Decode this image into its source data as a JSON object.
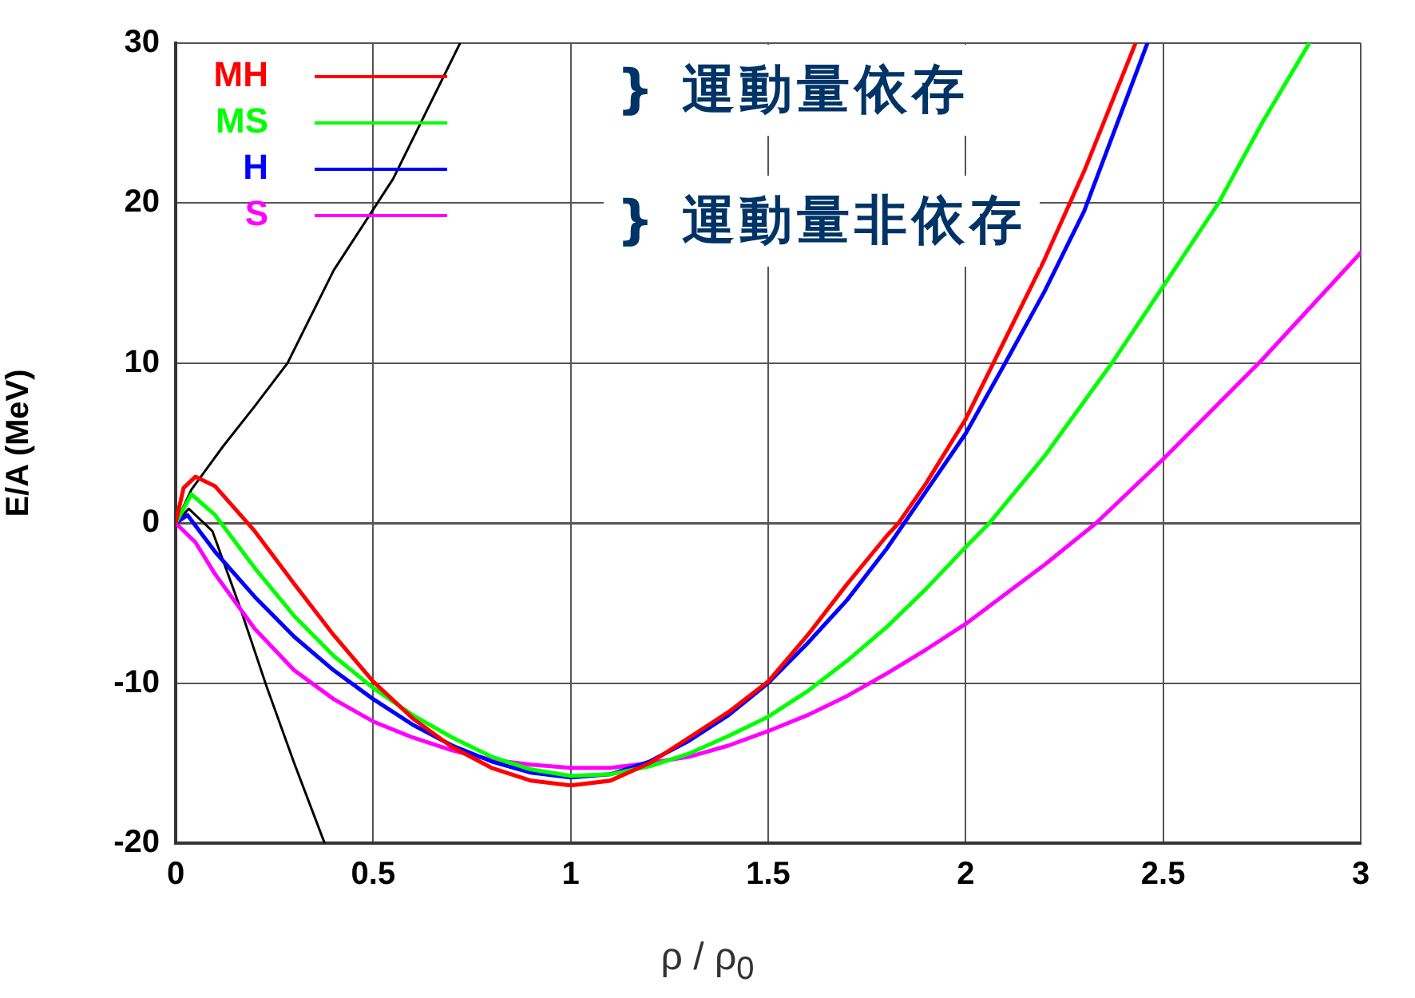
{
  "chart_data": {
    "type": "line",
    "xlabel": "ρ / ρ$_{0}$",
    "ylabel": "E/A (MeV)",
    "xlim": [
      0,
      3
    ],
    "xticks": [
      0,
      0.5,
      1,
      1.5,
      2,
      2.5,
      3
    ],
    "ylim": [
      -20,
      30
    ],
    "yticks": [
      -20,
      -10,
      0,
      10,
      20,
      30
    ],
    "grid": true,
    "legend": "top left",
    "marker": "none",
    "line_style": "solid",
    "annotations": [
      "} 運動量依存",
      "} 運動量非依存"
    ],
    "series": [
      {
        "name": "MH",
        "color": "#ff0000",
        "x": [
          0,
          0.02,
          0.05,
          0.1,
          0.2,
          0.3,
          0.4,
          0.5,
          0.6,
          0.7,
          0.8,
          0.9,
          1.0,
          1.1,
          1.2,
          1.3,
          1.4,
          1.5,
          1.6,
          1.7,
          1.8,
          1.83,
          1.9,
          2.0,
          2.07,
          2.2,
          2.3,
          2.43
        ],
        "values": [
          0,
          2.2,
          2.9,
          2.3,
          -0.5,
          -3.8,
          -7,
          -9.9,
          -12.2,
          -14,
          -15.3,
          -16.1,
          -16.4,
          -16.1,
          -15,
          -13.4,
          -11.8,
          -9.9,
          -7,
          -3.8,
          -0.8,
          0,
          2.5,
          6.5,
          10,
          16.5,
          22,
          30
        ]
      },
      {
        "name": "MS",
        "color": "#00ff00",
        "x": [
          0,
          0.04,
          0.1,
          0.2,
          0.3,
          0.4,
          0.5,
          0.6,
          0.7,
          0.8,
          0.9,
          1.0,
          1.1,
          1.2,
          1.3,
          1.4,
          1.5,
          1.6,
          1.7,
          1.8,
          1.9,
          2.0,
          2.06,
          2.2,
          2.37,
          2.5,
          2.64,
          2.75,
          2.87
        ],
        "values": [
          0,
          1.8,
          0.5,
          -2.8,
          -5.8,
          -8.3,
          -10.3,
          -12,
          -13.4,
          -14.6,
          -15.4,
          -15.8,
          -15.7,
          -15.2,
          -14.4,
          -13.3,
          -12.1,
          -10.5,
          -8.6,
          -6.5,
          -4.1,
          -1.5,
          0,
          4.2,
          10,
          14.8,
          20,
          25,
          30
        ]
      },
      {
        "name": "H",
        "color": "#0000ff",
        "x": [
          0,
          0.03,
          0.1,
          0.2,
          0.3,
          0.4,
          0.5,
          0.6,
          0.7,
          0.8,
          0.9,
          1.0,
          1.1,
          1.2,
          1.3,
          1.4,
          1.5,
          1.6,
          1.7,
          1.8,
          1.9,
          2.0,
          2.1,
          2.2,
          2.3,
          2.46
        ],
        "values": [
          0,
          0.5,
          -1.8,
          -4.6,
          -7.1,
          -9.2,
          -11,
          -12.6,
          -13.9,
          -14.9,
          -15.6,
          -15.9,
          -15.7,
          -14.9,
          -13.6,
          -12,
          -10,
          -7.5,
          -4.8,
          -1.6,
          2,
          5.6,
          10,
          14.5,
          19.5,
          30
        ]
      },
      {
        "name": "S",
        "color": "#ff00ff",
        "x": [
          0,
          0.05,
          0.1,
          0.2,
          0.3,
          0.4,
          0.5,
          0.6,
          0.7,
          0.8,
          0.9,
          1.0,
          1.1,
          1.2,
          1.3,
          1.4,
          1.5,
          1.6,
          1.7,
          1.8,
          1.9,
          2.0,
          2.2,
          2.33,
          2.5,
          2.75,
          3.0
        ],
        "values": [
          0,
          -1.2,
          -3.2,
          -6.6,
          -9.2,
          -11,
          -12.4,
          -13.4,
          -14.2,
          -14.8,
          -15.1,
          -15.3,
          -15.3,
          -15,
          -14.6,
          -13.9,
          -13,
          -12,
          -10.8,
          -9.4,
          -7.9,
          -6.3,
          -2.6,
          0,
          4,
          10.2,
          16.9
        ]
      },
      {
        "color": "#000000",
        "x": [
          0,
          0.04,
          0.12,
          0.2,
          0.283,
          0.4,
          0.55,
          0.72
        ],
        "values": [
          0,
          2.1,
          4.8,
          7.3,
          10,
          15.8,
          21.5,
          30
        ]
      },
      {
        "color": "#000000",
        "x": [
          0,
          0.033,
          0.093,
          0.162,
          0.23,
          0.3,
          0.377
        ],
        "values": [
          0,
          0.9,
          -0.5,
          -5.2,
          -10.2,
          -15,
          -20
        ]
      }
    ]
  }
}
